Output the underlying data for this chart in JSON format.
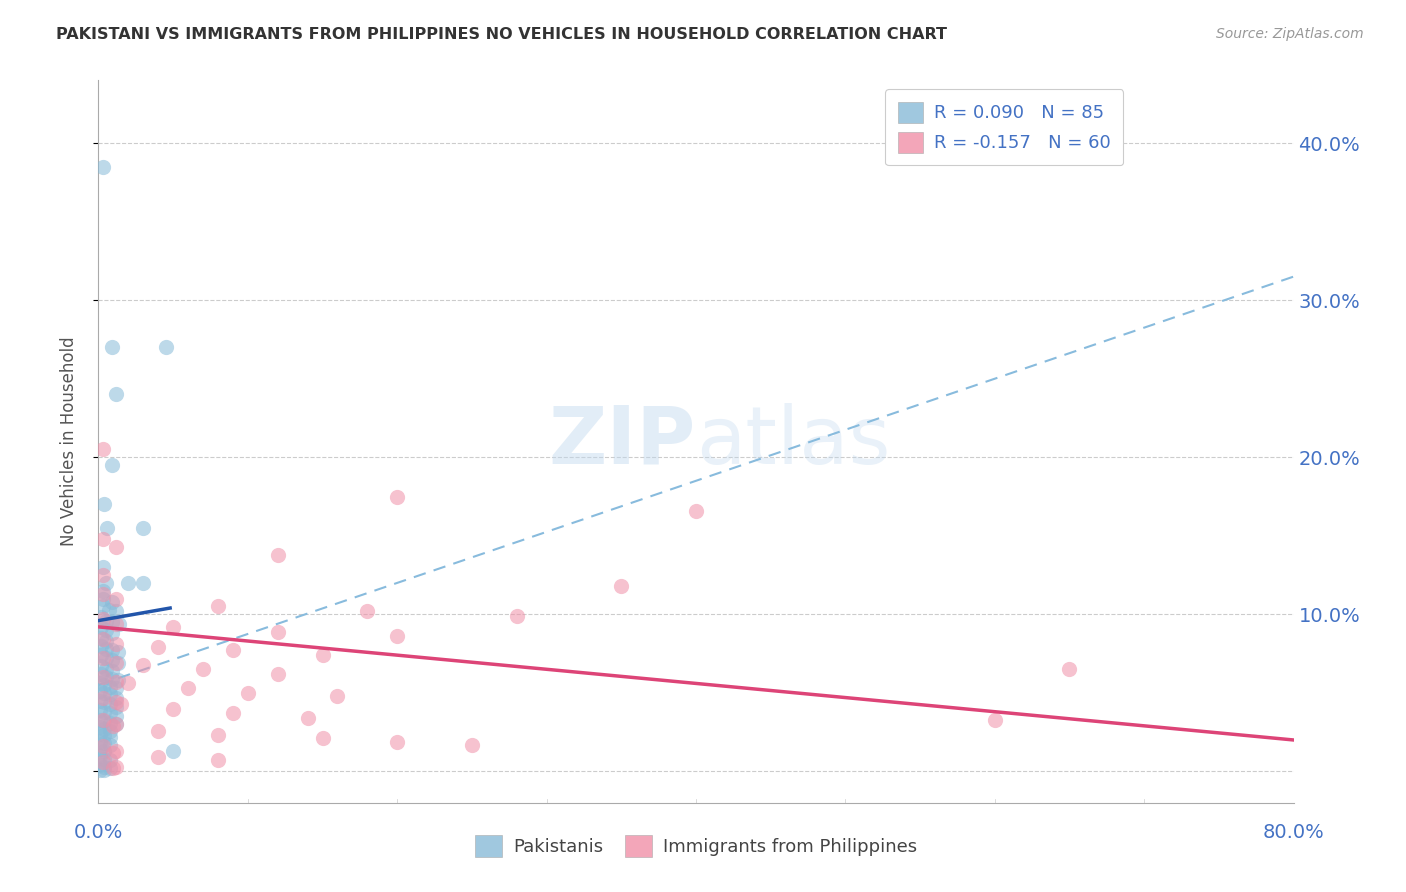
{
  "title": "PAKISTANI VS IMMIGRANTS FROM PHILIPPINES NO VEHICLES IN HOUSEHOLD CORRELATION CHART",
  "source": "Source: ZipAtlas.com",
  "ylabel": "No Vehicles in Household",
  "watermark": "ZIPatlas",
  "legend_top": [
    {
      "label": "R = 0.090   N = 85",
      "color": "#a8c8e8"
    },
    {
      "label": "R = -0.157   N = 60",
      "color": "#f4b8c8"
    }
  ],
  "legend_bottom": [
    {
      "label": "Pakistanis",
      "color": "#a8c8e8"
    },
    {
      "label": "Immigrants from Philippines",
      "color": "#f4b8c8"
    }
  ],
  "xlim": [
    0.0,
    0.8
  ],
  "ylim": [
    -0.02,
    0.44
  ],
  "yticks": [
    0.0,
    0.1,
    0.2,
    0.3,
    0.4
  ],
  "blue_scatter": [
    [
      0.003,
      0.385
    ],
    [
      0.009,
      0.27
    ],
    [
      0.045,
      0.27
    ],
    [
      0.012,
      0.24
    ],
    [
      0.009,
      0.195
    ],
    [
      0.004,
      0.17
    ],
    [
      0.006,
      0.155
    ],
    [
      0.03,
      0.155
    ],
    [
      0.003,
      0.13
    ],
    [
      0.005,
      0.12
    ],
    [
      0.02,
      0.12
    ],
    [
      0.03,
      0.12
    ],
    [
      0.003,
      0.115
    ],
    [
      0.003,
      0.11
    ],
    [
      0.009,
      0.108
    ],
    [
      0.003,
      0.105
    ],
    [
      0.007,
      0.103
    ],
    [
      0.012,
      0.102
    ],
    [
      0.002,
      0.098
    ],
    [
      0.005,
      0.096
    ],
    [
      0.009,
      0.095
    ],
    [
      0.014,
      0.094
    ],
    [
      0.002,
      0.092
    ],
    [
      0.005,
      0.09
    ],
    [
      0.009,
      0.088
    ],
    [
      0.002,
      0.085
    ],
    [
      0.005,
      0.083
    ],
    [
      0.002,
      0.08
    ],
    [
      0.005,
      0.078
    ],
    [
      0.009,
      0.077
    ],
    [
      0.013,
      0.076
    ],
    [
      0.002,
      0.074
    ],
    [
      0.005,
      0.072
    ],
    [
      0.009,
      0.071
    ],
    [
      0.013,
      0.069
    ],
    [
      0.002,
      0.067
    ],
    [
      0.005,
      0.065
    ],
    [
      0.009,
      0.064
    ],
    [
      0.002,
      0.062
    ],
    [
      0.005,
      0.06
    ],
    [
      0.009,
      0.059
    ],
    [
      0.013,
      0.058
    ],
    [
      0.001,
      0.056
    ],
    [
      0.004,
      0.055
    ],
    [
      0.008,
      0.054
    ],
    [
      0.012,
      0.053
    ],
    [
      0.001,
      0.051
    ],
    [
      0.004,
      0.05
    ],
    [
      0.008,
      0.049
    ],
    [
      0.012,
      0.047
    ],
    [
      0.001,
      0.045
    ],
    [
      0.004,
      0.044
    ],
    [
      0.008,
      0.043
    ],
    [
      0.012,
      0.041
    ],
    [
      0.001,
      0.039
    ],
    [
      0.004,
      0.038
    ],
    [
      0.008,
      0.037
    ],
    [
      0.012,
      0.035
    ],
    [
      0.001,
      0.033
    ],
    [
      0.004,
      0.032
    ],
    [
      0.008,
      0.031
    ],
    [
      0.012,
      0.03
    ],
    [
      0.001,
      0.028
    ],
    [
      0.004,
      0.027
    ],
    [
      0.008,
      0.026
    ],
    [
      0.001,
      0.024
    ],
    [
      0.004,
      0.023
    ],
    [
      0.008,
      0.022
    ],
    [
      0.001,
      0.019
    ],
    [
      0.004,
      0.018
    ],
    [
      0.008,
      0.017
    ],
    [
      0.001,
      0.014
    ],
    [
      0.004,
      0.013
    ],
    [
      0.05,
      0.013
    ],
    [
      0.001,
      0.01
    ],
    [
      0.004,
      0.008
    ],
    [
      0.008,
      0.007
    ],
    [
      0.001,
      0.004
    ],
    [
      0.004,
      0.003
    ],
    [
      0.008,
      0.002
    ],
    [
      0.001,
      0.001
    ],
    [
      0.004,
      0.001
    ]
  ],
  "pink_scatter": [
    [
      0.003,
      0.205
    ],
    [
      0.2,
      0.175
    ],
    [
      0.003,
      0.148
    ],
    [
      0.012,
      0.143
    ],
    [
      0.12,
      0.138
    ],
    [
      0.003,
      0.125
    ],
    [
      0.35,
      0.118
    ],
    [
      0.003,
      0.113
    ],
    [
      0.012,
      0.11
    ],
    [
      0.08,
      0.105
    ],
    [
      0.18,
      0.102
    ],
    [
      0.28,
      0.099
    ],
    [
      0.003,
      0.097
    ],
    [
      0.012,
      0.094
    ],
    [
      0.05,
      0.092
    ],
    [
      0.12,
      0.089
    ],
    [
      0.2,
      0.086
    ],
    [
      0.4,
      0.166
    ],
    [
      0.003,
      0.084
    ],
    [
      0.012,
      0.081
    ],
    [
      0.04,
      0.079
    ],
    [
      0.09,
      0.077
    ],
    [
      0.15,
      0.074
    ],
    [
      0.003,
      0.072
    ],
    [
      0.012,
      0.069
    ],
    [
      0.03,
      0.068
    ],
    [
      0.07,
      0.065
    ],
    [
      0.12,
      0.062
    ],
    [
      0.003,
      0.06
    ],
    [
      0.012,
      0.057
    ],
    [
      0.02,
      0.056
    ],
    [
      0.06,
      0.053
    ],
    [
      0.1,
      0.05
    ],
    [
      0.16,
      0.048
    ],
    [
      0.003,
      0.047
    ],
    [
      0.012,
      0.044
    ],
    [
      0.015,
      0.043
    ],
    [
      0.05,
      0.04
    ],
    [
      0.09,
      0.037
    ],
    [
      0.14,
      0.034
    ],
    [
      0.003,
      0.033
    ],
    [
      0.012,
      0.03
    ],
    [
      0.01,
      0.029
    ],
    [
      0.04,
      0.026
    ],
    [
      0.08,
      0.023
    ],
    [
      0.15,
      0.021
    ],
    [
      0.2,
      0.019
    ],
    [
      0.25,
      0.017
    ],
    [
      0.003,
      0.016
    ],
    [
      0.012,
      0.013
    ],
    [
      0.01,
      0.012
    ],
    [
      0.04,
      0.009
    ],
    [
      0.08,
      0.007
    ],
    [
      0.003,
      0.006
    ],
    [
      0.012,
      0.003
    ],
    [
      0.01,
      0.002
    ],
    [
      0.6,
      0.033
    ],
    [
      0.65,
      0.065
    ]
  ],
  "blue_line_color": "#2255aa",
  "pink_line_color": "#dd4477",
  "dashed_line_color": "#88bbdd",
  "grid_color": "#cccccc",
  "title_color": "#333333",
  "axis_color": "#4472c4",
  "scatter_blue": "#88bbd8",
  "scatter_pink": "#f090a8",
  "scatter_alpha": 0.55,
  "scatter_size": 120,
  "blue_line_x": [
    0.0,
    0.048
  ],
  "blue_line_y": [
    0.096,
    0.104
  ],
  "pink_line_x": [
    0.0,
    0.8
  ],
  "pink_line_y": [
    0.092,
    0.02
  ],
  "dash_line_x": [
    0.0,
    0.8
  ],
  "dash_line_y": [
    0.055,
    0.315
  ]
}
